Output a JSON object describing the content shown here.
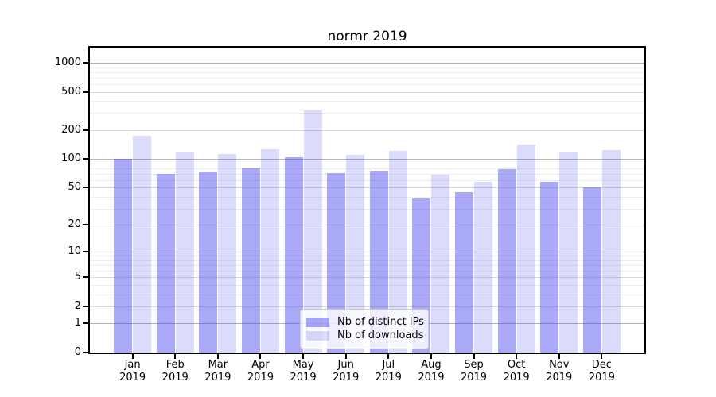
{
  "chart_data": {
    "type": "bar",
    "title": "normr 2019",
    "categories": [
      "Jan",
      "Feb",
      "Mar",
      "Apr",
      "May",
      "Jun",
      "Jul",
      "Aug",
      "Sep",
      "Oct",
      "Nov",
      "Dec"
    ],
    "year_label": "2019",
    "series": [
      {
        "name": "Nb of distinct IPs",
        "color": "rgba(64,64,238,0.45)",
        "values": [
          100,
          70,
          74,
          80,
          104,
          71,
          75,
          38,
          45,
          78,
          58,
          50
        ]
      },
      {
        "name": "Nb of downloads",
        "color": "rgba(64,64,238,0.19)",
        "values": [
          175,
          116,
          113,
          127,
          318,
          110,
          121,
          68,
          57,
          142,
          116,
          123
        ]
      }
    ],
    "y_axis": {
      "scale": "log1p",
      "ticks": [
        1000,
        500,
        200,
        100,
        50,
        20,
        10,
        5,
        2,
        1,
        0
      ],
      "major_ticks": [
        1000,
        100,
        10,
        1
      ],
      "top_value": 1434
    },
    "grid": {
      "major_color": "#b2b2b2",
      "labeled_color": "#dcdcdc",
      "minor_color": "#ededed"
    },
    "legend": {
      "position": "lower-center"
    },
    "text_color": "#000000",
    "background_color": "#ffffff"
  }
}
